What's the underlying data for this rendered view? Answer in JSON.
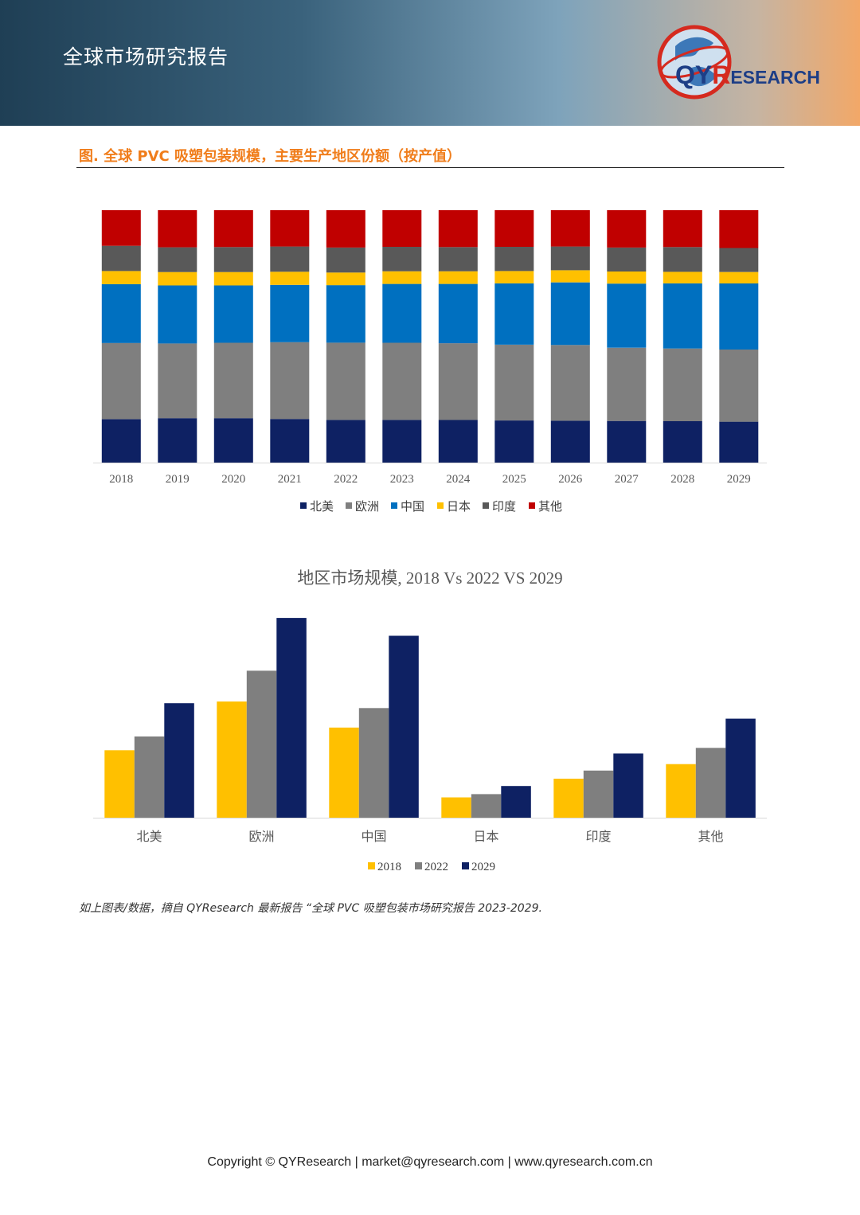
{
  "header": {
    "title": "全球市场研究报告"
  },
  "logo": {
    "brand_q": "QY",
    "brand_r": "R",
    "brand_rest": "ESEARCH"
  },
  "figure": {
    "title": "图.  全球 PVC 吸塑包装规模，主要生产地区份额（按产值）"
  },
  "colors": {
    "北美": "#0e2163",
    "欧洲": "#7f7f7f",
    "中国": "#0070c0",
    "日本": "#ffc000",
    "印度": "#595959",
    "其他": "#c00000",
    "2018": "#ffc000",
    "2022": "#7f7f7f",
    "2029": "#0e2163"
  },
  "chart_data": [
    {
      "type": "bar",
      "stacked": true,
      "title": "",
      "categories": [
        "2018",
        "2019",
        "2020",
        "2021",
        "2022",
        "2023",
        "2024",
        "2025",
        "2026",
        "2027",
        "2028",
        "2029"
      ],
      "series": [
        {
          "name": "北美",
          "values": [
            17.2,
            17.6,
            17.6,
            17.3,
            16.9,
            16.9,
            16.9,
            16.7,
            16.6,
            16.5,
            16.4,
            16.2
          ]
        },
        {
          "name": "欧洲",
          "values": [
            30.2,
            29.6,
            29.9,
            30.4,
            30.6,
            30.6,
            30.4,
            30.0,
            30.0,
            29.0,
            28.8,
            28.6
          ]
        },
        {
          "name": "中国",
          "values": [
            23.3,
            23.0,
            22.7,
            22.7,
            22.8,
            23.3,
            23.5,
            24.3,
            24.8,
            25.4,
            25.8,
            26.2
          ]
        },
        {
          "name": "日本",
          "values": [
            5.2,
            5.3,
            5.3,
            5.2,
            5.0,
            5.0,
            5.0,
            4.9,
            4.8,
            4.8,
            4.6,
            4.5
          ]
        },
        {
          "name": "印度",
          "values": [
            10.0,
            9.8,
            9.9,
            10.0,
            9.9,
            9.7,
            9.6,
            9.6,
            9.4,
            9.5,
            9.8,
            9.5
          ]
        },
        {
          "name": "其他",
          "values": [
            14.1,
            14.7,
            14.6,
            14.4,
            14.8,
            14.5,
            14.6,
            14.5,
            14.4,
            14.8,
            14.6,
            15.0
          ]
        }
      ],
      "ylim": [
        0,
        100
      ],
      "legend": "bottom"
    },
    {
      "type": "bar",
      "title": "地区市场规模, 2018 Vs 2022 VS 2029",
      "categories": [
        "北美",
        "欧洲",
        "中国",
        "日本",
        "印度",
        "其他"
      ],
      "series": [
        {
          "name": "2018",
          "values": [
            83,
            143,
            111,
            25,
            48,
            66
          ]
        },
        {
          "name": "2022",
          "values": [
            100,
            181,
            135,
            29,
            58,
            86
          ]
        },
        {
          "name": "2029",
          "values": [
            141,
            246,
            224,
            39,
            79,
            122
          ]
        }
      ],
      "ylim": [
        0,
        250
      ],
      "legend": "bottom"
    }
  ],
  "note": "如上图表/数据，摘自 QYResearch 最新报告 “全球 PVC 吸塑包装市场研究报告 2023-2029.",
  "footer": "Copyright © QYResearch | market@qyresearch.com | www.qyresearch.com.cn"
}
